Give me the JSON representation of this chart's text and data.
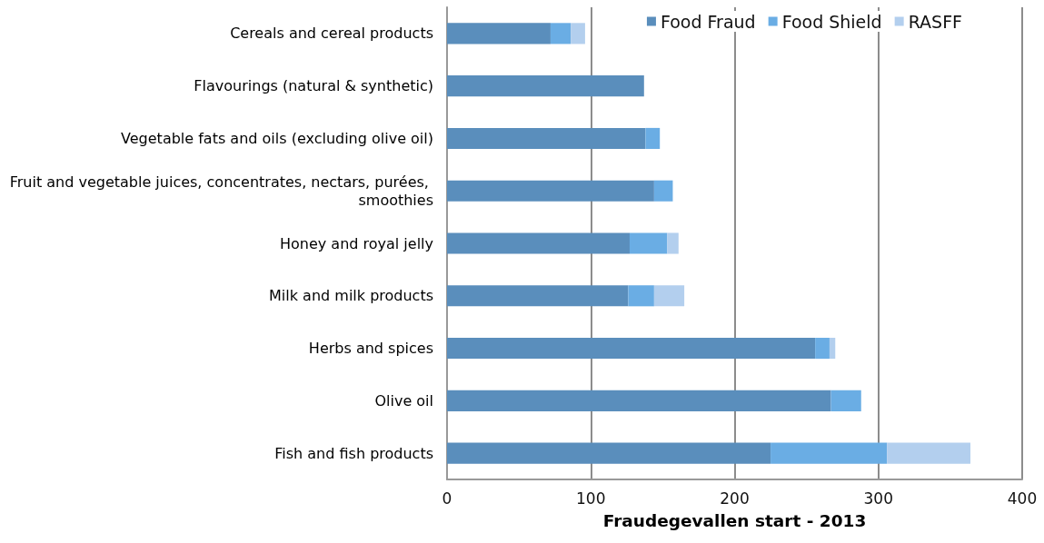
{
  "chart_data": {
    "type": "bar",
    "orientation": "horizontal",
    "stacked": true,
    "categories": [
      "Cereals and cereal products",
      "Flavourings (natural & synthetic)",
      "Vegetable fats and oils (excluding olive oil)",
      "Fruit and vegetable juices, concentrates, nectars, purées, smoothies",
      "Honey and royal jelly",
      "Milk and milk products",
      "Herbs and spices",
      "Olive oil",
      "Fish and fish products"
    ],
    "series": [
      {
        "name": "Food Fraud",
        "color": "#5a8ebc",
        "values": [
          72,
          137,
          138,
          144,
          127,
          126,
          256,
          267,
          225
        ]
      },
      {
        "name": "Food Shield",
        "color": "#6aade4",
        "values": [
          14,
          null,
          10,
          13,
          26,
          18,
          10,
          21,
          81
        ]
      },
      {
        "name": "RASFF",
        "color": "#b3cfee",
        "values": [
          10,
          null,
          null,
          null,
          8,
          21,
          4,
          null,
          58
        ]
      }
    ],
    "xlabel": "Fraudegevallen start - 2013",
    "xlim": [
      0,
      400
    ],
    "xticks": [
      0,
      100,
      200,
      300,
      400
    ],
    "grid": "x",
    "legend": "top right"
  }
}
